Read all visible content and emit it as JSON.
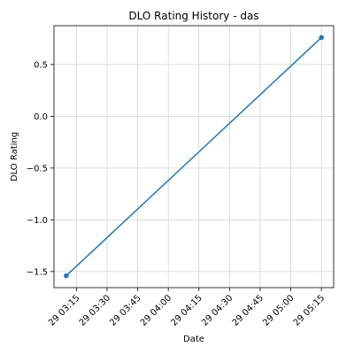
{
  "chart_data": {
    "type": "line",
    "title": "DLO Rating History - das",
    "xlabel": "Date",
    "ylabel": "DLO Rating",
    "x": [
      "29 03:10",
      "29 05:15"
    ],
    "series": [
      {
        "values": [
          -1.54,
          0.76
        ]
      }
    ],
    "color": "#1f77b4",
    "marker": "circle",
    "grid": true,
    "xticks": [
      "29 03:15",
      "29 03:30",
      "29 03:45",
      "29 04:00",
      "29 04:15",
      "29 04:30",
      "29 04:45",
      "29 05:00",
      "29 05:15"
    ],
    "yticks": [
      "0.5",
      "0.0",
      "−0.5",
      "−1.0",
      "−1.5"
    ],
    "xlim": [
      "29 03:04",
      "29 05:21"
    ],
    "ylim": [
      -1.655,
      0.875
    ]
  }
}
